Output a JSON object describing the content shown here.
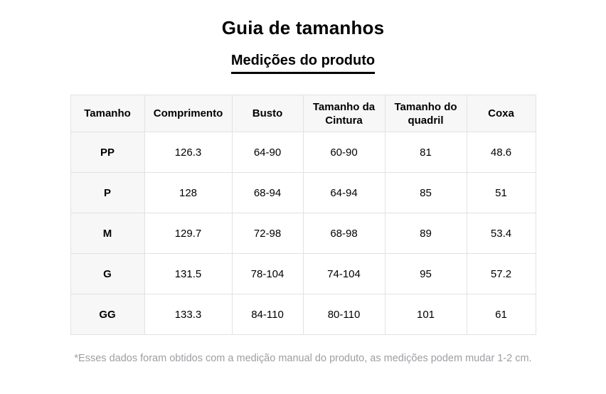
{
  "page": {
    "title": "Guia de tamanhos",
    "subtitle": "Medições do produto",
    "footnote": "*Esses dados foram obtidos com a medição manual do produto, as medições podem mudar 1-2 cm."
  },
  "chart_data": {
    "type": "table",
    "title": "Guia de tamanhos",
    "subtitle": "Medições do produto",
    "columns": [
      "Tamanho",
      "Comprimento",
      "Busto",
      "Tamanho da Cintura",
      "Tamanho do quadril",
      "Coxa"
    ],
    "rows": [
      [
        "PP",
        "126.3",
        "64-90",
        "60-90",
        "81",
        "48.6"
      ],
      [
        "P",
        "128",
        "68-94",
        "64-94",
        "85",
        "51"
      ],
      [
        "M",
        "129.7",
        "72-98",
        "68-98",
        "89",
        "53.4"
      ],
      [
        "G",
        "131.5",
        "78-104",
        "74-104",
        "95",
        "57.2"
      ],
      [
        "GG",
        "133.3",
        "84-110",
        "80-110",
        "101",
        "61"
      ]
    ],
    "footnote": "*Esses dados foram obtidos com a medição manual do produto, as medições podem mudar 1-2 cm.",
    "layout_hints": {
      "header_background": "#f7f7f7",
      "row_header_background": "#f7f7f7",
      "cell_background": "#ffffff",
      "border_color": "#e2e2e2",
      "text_color": "#000000",
      "footnote_color": "#9e9ea3",
      "subtitle_underlined": true
    }
  }
}
